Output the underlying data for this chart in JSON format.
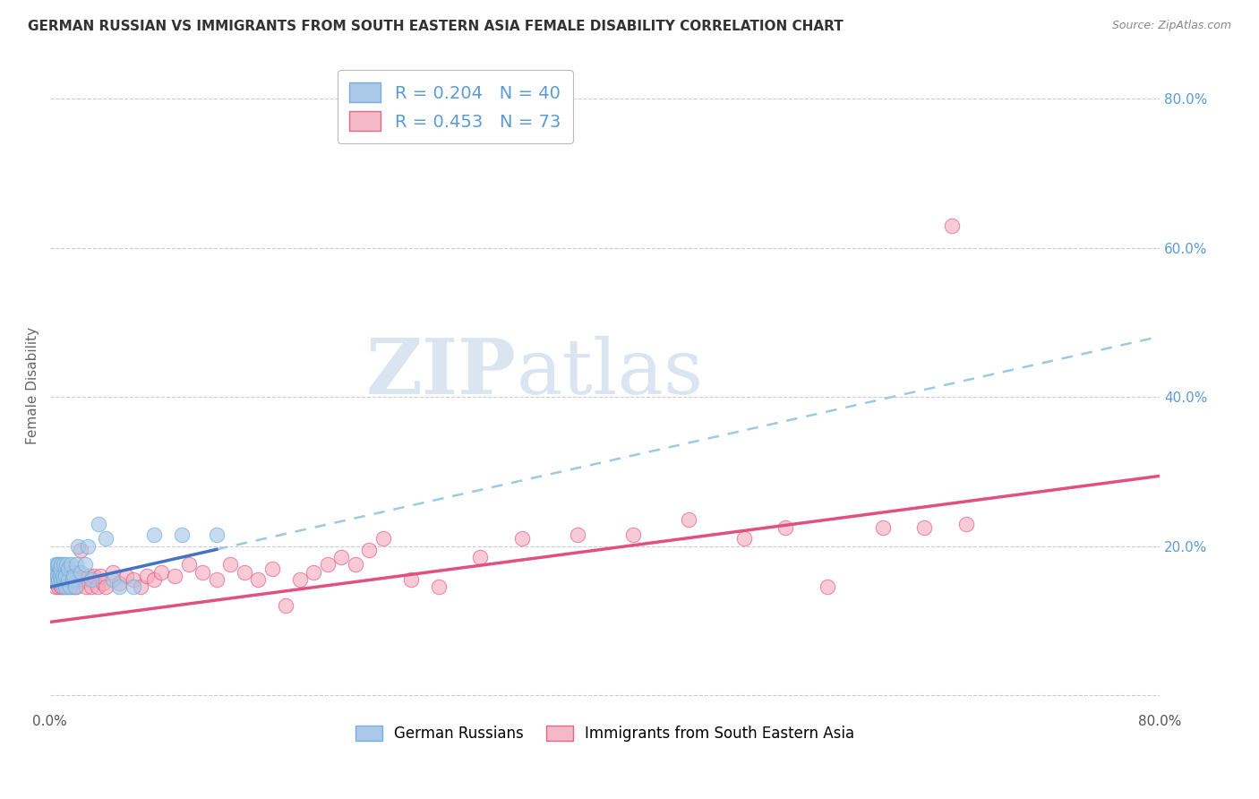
{
  "title": "GERMAN RUSSIAN VS IMMIGRANTS FROM SOUTH EASTERN ASIA FEMALE DISABILITY CORRELATION CHART",
  "source": "Source: ZipAtlas.com",
  "ylabel": "Female Disability",
  "xlim": [
    0.0,
    0.8
  ],
  "ylim": [
    -0.02,
    0.85
  ],
  "blue_R": 0.204,
  "blue_N": 40,
  "pink_R": 0.453,
  "pink_N": 73,
  "blue_color": "#a8c8e8",
  "blue_edge_color": "#6baed6",
  "blue_line_color": "#4472c4",
  "blue_dash_color": "#9ecae1",
  "pink_color": "#f4a7b9",
  "pink_edge_color": "#e05080",
  "pink_line_color": "#e05080",
  "blue_scatter_x": [
    0.002,
    0.003,
    0.004,
    0.004,
    0.005,
    0.005,
    0.006,
    0.006,
    0.007,
    0.007,
    0.008,
    0.008,
    0.009,
    0.009,
    0.01,
    0.01,
    0.011,
    0.011,
    0.012,
    0.013,
    0.013,
    0.014,
    0.015,
    0.016,
    0.017,
    0.018,
    0.019,
    0.02,
    0.022,
    0.025,
    0.027,
    0.03,
    0.035,
    0.04,
    0.045,
    0.05,
    0.06,
    0.075,
    0.095,
    0.12
  ],
  "blue_scatter_y": [
    0.165,
    0.17,
    0.155,
    0.175,
    0.16,
    0.175,
    0.155,
    0.175,
    0.16,
    0.17,
    0.155,
    0.175,
    0.16,
    0.145,
    0.175,
    0.155,
    0.16,
    0.145,
    0.175,
    0.155,
    0.17,
    0.145,
    0.175,
    0.155,
    0.16,
    0.145,
    0.175,
    0.2,
    0.165,
    0.175,
    0.2,
    0.155,
    0.23,
    0.21,
    0.155,
    0.145,
    0.145,
    0.215,
    0.215,
    0.215
  ],
  "pink_scatter_x": [
    0.002,
    0.003,
    0.004,
    0.004,
    0.005,
    0.005,
    0.006,
    0.006,
    0.007,
    0.007,
    0.008,
    0.008,
    0.009,
    0.01,
    0.01,
    0.011,
    0.012,
    0.013,
    0.014,
    0.015,
    0.016,
    0.017,
    0.018,
    0.019,
    0.02,
    0.022,
    0.024,
    0.026,
    0.028,
    0.03,
    0.032,
    0.034,
    0.036,
    0.038,
    0.04,
    0.045,
    0.05,
    0.055,
    0.06,
    0.065,
    0.07,
    0.075,
    0.08,
    0.09,
    0.1,
    0.11,
    0.12,
    0.13,
    0.14,
    0.15,
    0.16,
    0.17,
    0.18,
    0.19,
    0.2,
    0.21,
    0.22,
    0.23,
    0.24,
    0.26,
    0.28,
    0.31,
    0.34,
    0.38,
    0.42,
    0.46,
    0.5,
    0.53,
    0.56,
    0.6,
    0.63,
    0.66,
    0.65
  ],
  "pink_scatter_y": [
    0.155,
    0.16,
    0.145,
    0.165,
    0.15,
    0.16,
    0.145,
    0.165,
    0.15,
    0.16,
    0.145,
    0.165,
    0.15,
    0.155,
    0.145,
    0.16,
    0.155,
    0.145,
    0.16,
    0.15,
    0.165,
    0.145,
    0.155,
    0.145,
    0.165,
    0.195,
    0.155,
    0.145,
    0.16,
    0.145,
    0.16,
    0.145,
    0.16,
    0.15,
    0.145,
    0.165,
    0.15,
    0.16,
    0.155,
    0.145,
    0.16,
    0.155,
    0.165,
    0.16,
    0.175,
    0.165,
    0.155,
    0.175,
    0.165,
    0.155,
    0.17,
    0.12,
    0.155,
    0.165,
    0.175,
    0.185,
    0.175,
    0.195,
    0.21,
    0.155,
    0.145,
    0.185,
    0.21,
    0.215,
    0.215,
    0.235,
    0.21,
    0.225,
    0.145,
    0.225,
    0.225,
    0.23,
    0.63
  ],
  "watermark_zip": "ZIP",
  "watermark_atlas": "atlas",
  "background_color": "#ffffff",
  "grid_color": "#cccccc",
  "right_axis_color": "#5b9bd5",
  "legend_box_color": "#e8e8e8"
}
